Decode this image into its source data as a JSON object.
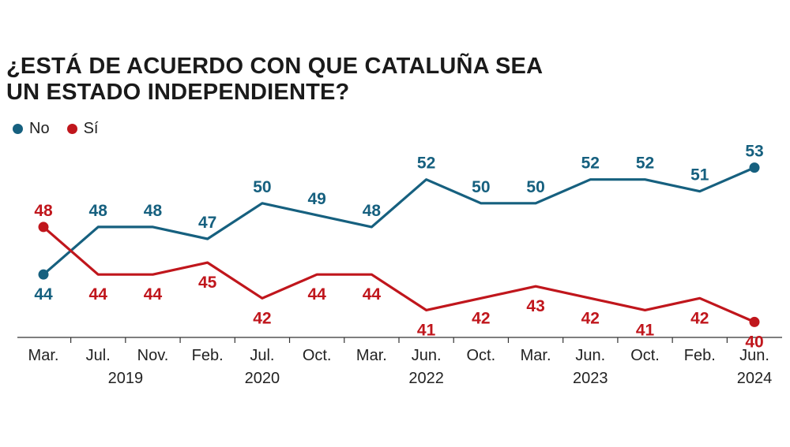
{
  "chart_data": {
    "type": "line",
    "title_lines": [
      "¿ESTÁ DE ACUERDO CON QUE CATALUÑA SEA",
      "UN ESTADO INDEPENDIENTE?"
    ],
    "categories": [
      "Mar.",
      "Jul.",
      "Nov.",
      "Feb.",
      "Jul.",
      "Oct.",
      "Mar.",
      "Jun.",
      "Oct.",
      "Mar.",
      "Jun.",
      "Oct.",
      "Feb.",
      "Jun."
    ],
    "year_labels": [
      {
        "label": "2019",
        "category_index": 1.5
      },
      {
        "label": "2020",
        "category_index": 4
      },
      {
        "label": "2022",
        "category_index": 7
      },
      {
        "label": "2023",
        "category_index": 10
      },
      {
        "label": "2024",
        "category_index": 13
      }
    ],
    "series": [
      {
        "name": "No",
        "color": "#16607f",
        "values": [
          44,
          48,
          48,
          47,
          50,
          49,
          48,
          52,
          50,
          50,
          52,
          52,
          51,
          53
        ]
      },
      {
        "name": "Sí",
        "color": "#c0161c",
        "values": [
          48,
          44,
          44,
          45,
          42,
          44,
          44,
          41,
          42,
          43,
          42,
          41,
          42,
          40
        ]
      }
    ],
    "ylim": [
      38.9,
      54.5
    ],
    "xlabel": "",
    "ylabel": "",
    "grid": false,
    "legend_position": "top-left"
  }
}
